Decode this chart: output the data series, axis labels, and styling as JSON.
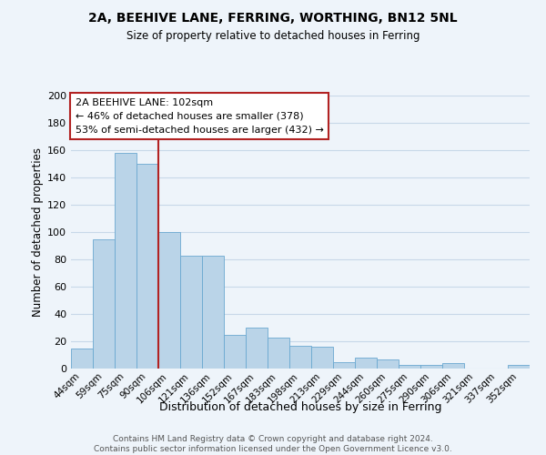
{
  "title": "2A, BEEHIVE LANE, FERRING, WORTHING, BN12 5NL",
  "subtitle": "Size of property relative to detached houses in Ferring",
  "xlabel": "Distribution of detached houses by size in Ferring",
  "ylabel": "Number of detached properties",
  "categories": [
    "44sqm",
    "59sqm",
    "75sqm",
    "90sqm",
    "106sqm",
    "121sqm",
    "136sqm",
    "152sqm",
    "167sqm",
    "183sqm",
    "198sqm",
    "213sqm",
    "229sqm",
    "244sqm",
    "260sqm",
    "275sqm",
    "290sqm",
    "306sqm",
    "321sqm",
    "337sqm",
    "352sqm"
  ],
  "values": [
    15,
    95,
    158,
    150,
    100,
    83,
    83,
    25,
    30,
    23,
    17,
    16,
    5,
    8,
    7,
    3,
    3,
    4,
    0,
    0,
    3
  ],
  "bar_color": "#bad4e8",
  "bar_edge_color": "#6aa8d0",
  "grid_color": "#c8d8e8",
  "bg_color": "#eef4fa",
  "vline_index": 4,
  "vline_color": "#b22222",
  "annotation_text": "2A BEEHIVE LANE: 102sqm\n← 46% of detached houses are smaller (378)\n53% of semi-detached houses are larger (432) →",
  "annotation_box_fill": "#ffffff",
  "annotation_box_edge": "#b22222",
  "ylim": [
    0,
    200
  ],
  "yticks": [
    0,
    20,
    40,
    60,
    80,
    100,
    120,
    140,
    160,
    180,
    200
  ],
  "footer": "Contains HM Land Registry data © Crown copyright and database right 2024.\nContains public sector information licensed under the Open Government Licence v3.0."
}
